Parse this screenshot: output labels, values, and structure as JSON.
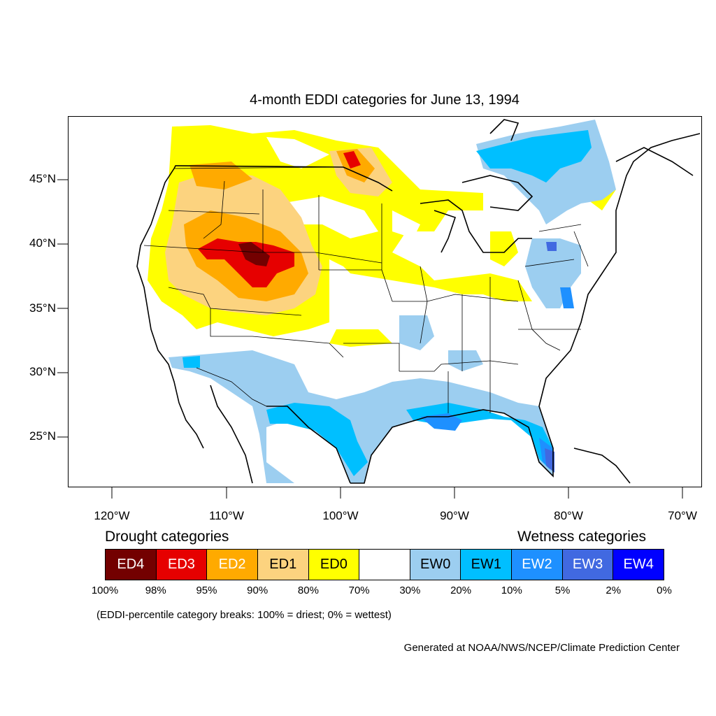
{
  "title": "4-month EDDI categories for June 13, 1994",
  "map": {
    "lat_labels": [
      "45°N",
      "40°N",
      "35°N",
      "30°N",
      "25°N"
    ],
    "lon_labels": [
      "120°W",
      "110°W",
      "100°W",
      "90°W",
      "80°W",
      "70°W"
    ]
  },
  "legend": {
    "drought_title": "Drought categories",
    "wetness_title": "Wetness categories",
    "categories": [
      {
        "label": "ED4",
        "color": "#730000",
        "text_color": "#ffffff"
      },
      {
        "label": "ED3",
        "color": "#e60000",
        "text_color": "#ffffff"
      },
      {
        "label": "ED2",
        "color": "#ffaa00",
        "text_color": "#ffffff"
      },
      {
        "label": "ED1",
        "color": "#fcd37f",
        "text_color": "#000000"
      },
      {
        "label": "ED0",
        "color": "#ffff00",
        "text_color": "#000000"
      },
      {
        "label": "",
        "color": "#ffffff",
        "text_color": "#000000"
      },
      {
        "label": "EW0",
        "color": "#9ccef0",
        "text_color": "#000000"
      },
      {
        "label": "EW1",
        "color": "#00bfff",
        "text_color": "#000000"
      },
      {
        "label": "EW2",
        "color": "#1e90ff",
        "text_color": "#ffffff"
      },
      {
        "label": "EW3",
        "color": "#4169e1",
        "text_color": "#ffffff"
      },
      {
        "label": "EW4",
        "color": "#0000ff",
        "text_color": "#ffffff"
      }
    ],
    "breaks": [
      "100%",
      "98%",
      "95%",
      "90%",
      "80%",
      "70%",
      "30%",
      "20%",
      "10%",
      "5%",
      "2%",
      "0%"
    ]
  },
  "note": "(EDDI-percentile category breaks: 100% = driest; 0% = wettest)",
  "credit": "Generated at NOAA/NWS/NCEP/Climate Prediction Center"
}
